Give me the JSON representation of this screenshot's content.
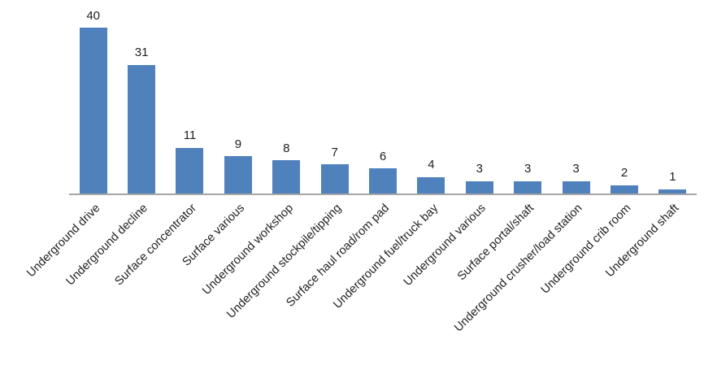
{
  "chart_data": {
    "type": "bar",
    "title": "",
    "xlabel": "",
    "ylabel": "",
    "categories": [
      "Underground drive",
      "Underground decline",
      "Surface concentrator",
      "Surface various",
      "Underground workshop",
      "Underground stockpile/tipping",
      "Surface haul road/rom pad",
      "Underground fuel/truck bay",
      "Underground various",
      "Surface portal/shaft",
      "Underground crusher/load station",
      "Underground crib room",
      "Underground shaft"
    ],
    "values": [
      40,
      31,
      11,
      9,
      8,
      7,
      6,
      4,
      3,
      3,
      3,
      2,
      1
    ],
    "ylim": [
      0,
      47
    ],
    "grid": "off",
    "legend": "none",
    "data_labels": "above-bars",
    "x_tick_rotation_deg": -45,
    "bar_color": "#4F81BD",
    "axis_line_color": "#A6A6A6",
    "label_color": "#1f1f1f"
  }
}
